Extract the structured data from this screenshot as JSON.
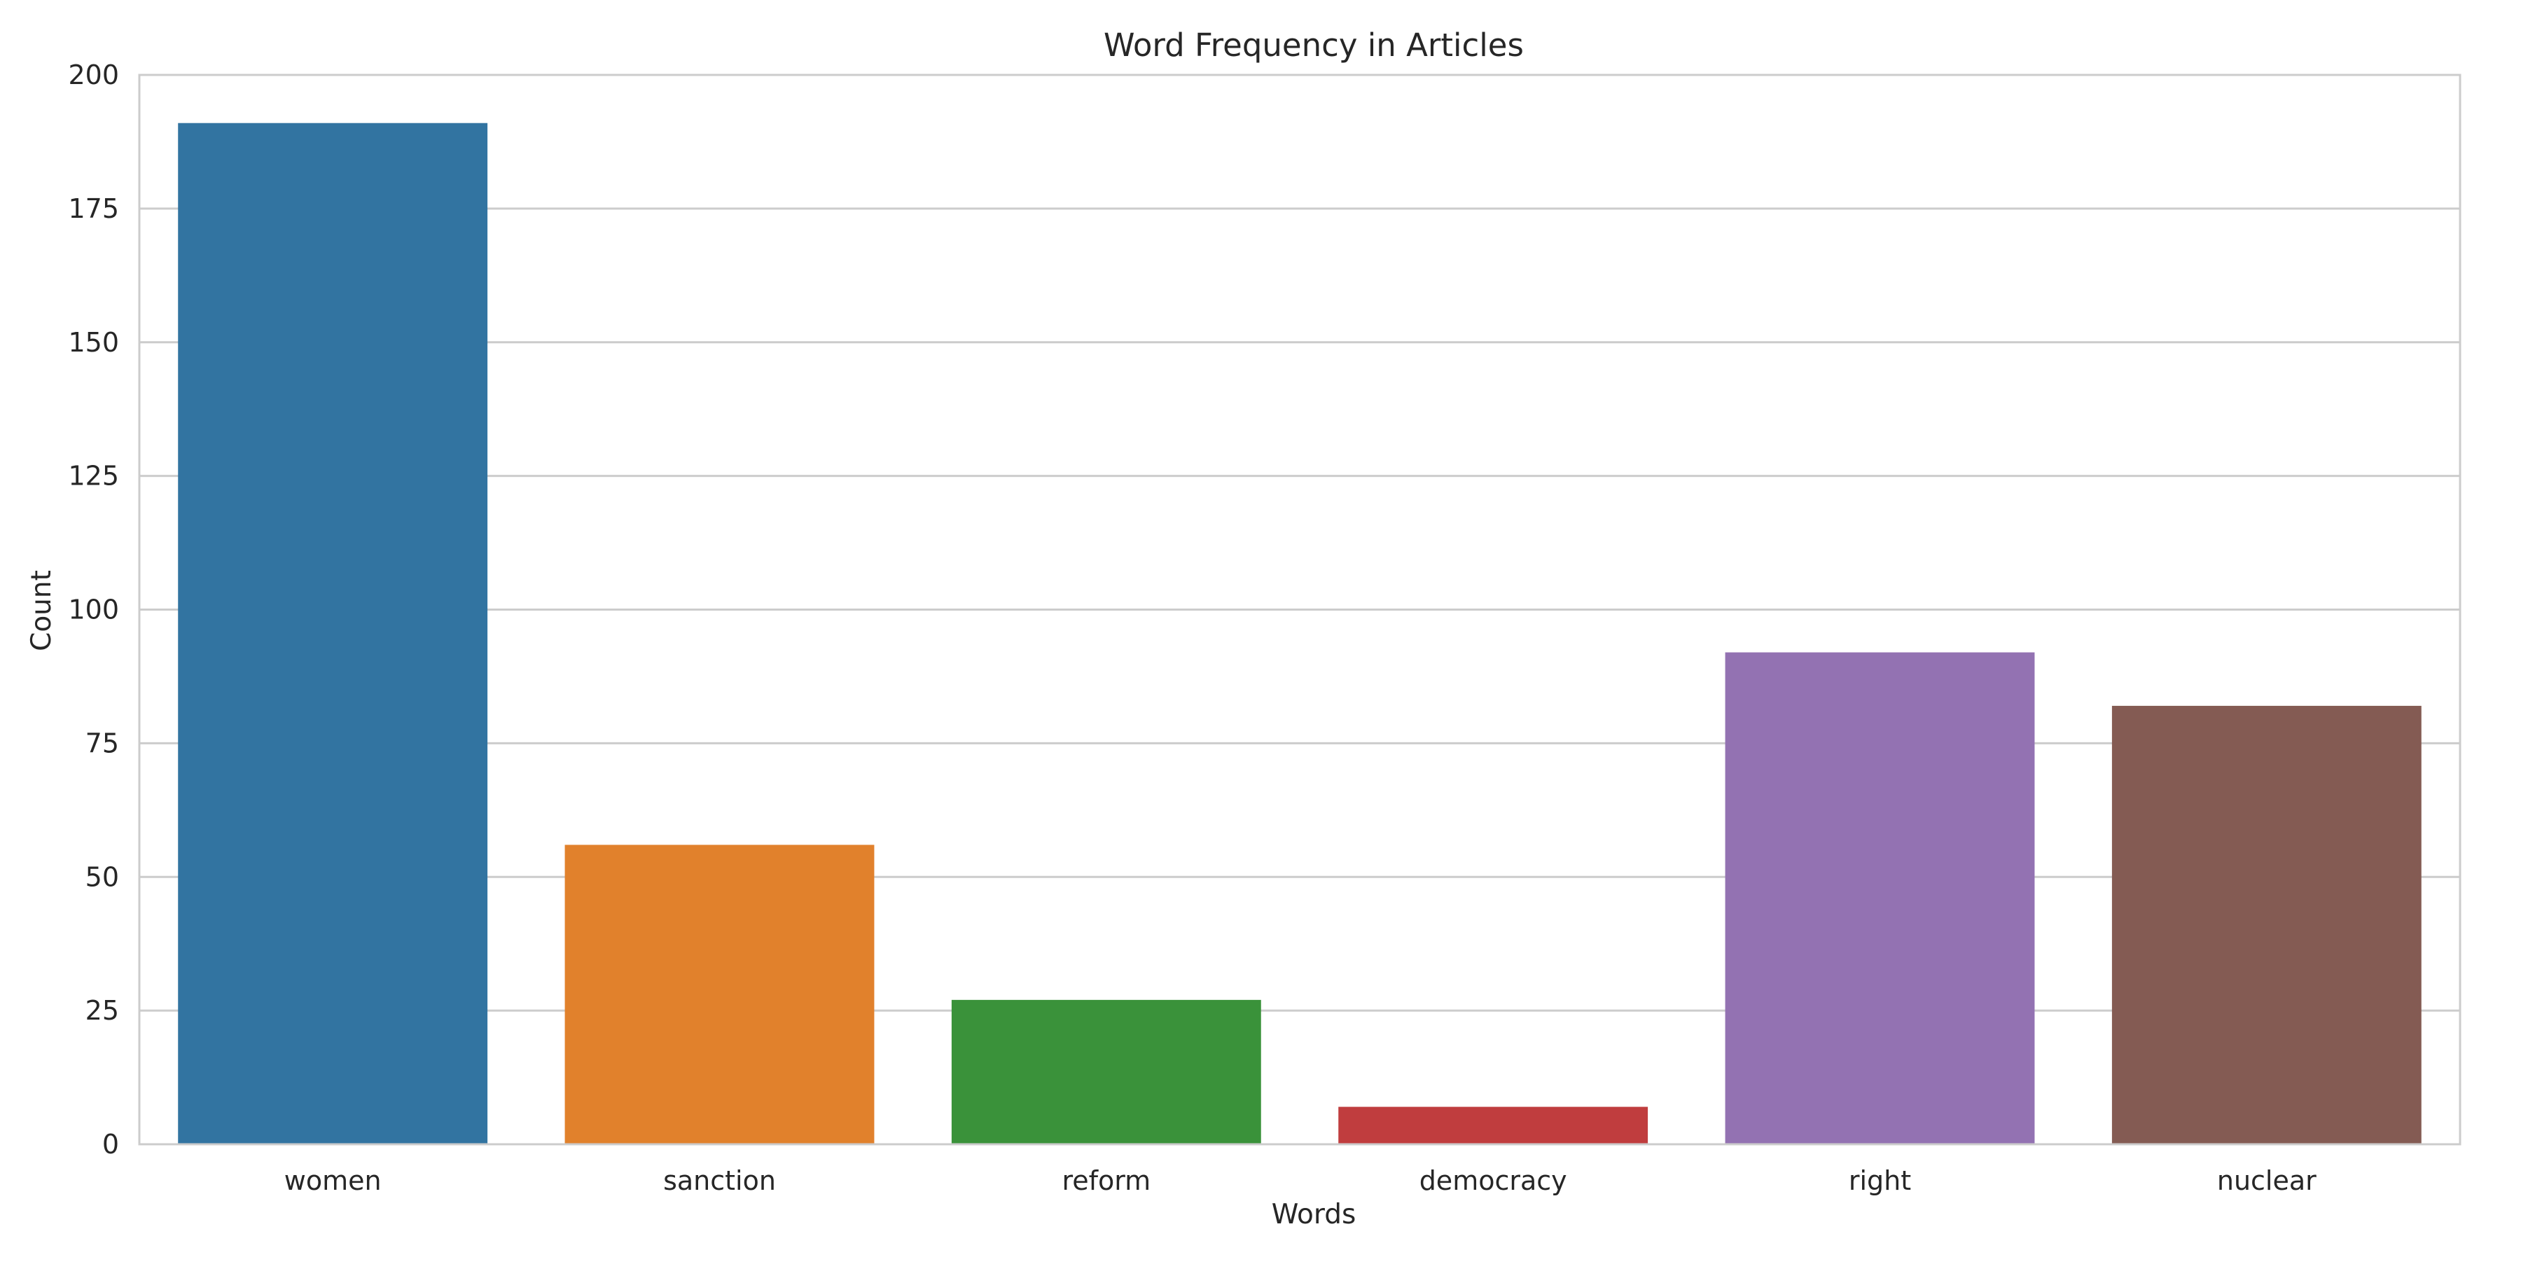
{
  "chart_data": {
    "type": "bar",
    "title": "Word Frequency in Articles",
    "xlabel": "Words",
    "ylabel": "Count",
    "categories": [
      "women",
      "sanction",
      "reform",
      "democracy",
      "right",
      "nuclear"
    ],
    "values": [
      191,
      56,
      27,
      7,
      92,
      82
    ],
    "colors": [
      "#3274a1",
      "#e1812c",
      "#3a923a",
      "#c03d3e",
      "#9372b2",
      "#845b53"
    ],
    "ylim": [
      0,
      200
    ],
    "yticks": [
      0,
      25,
      50,
      75,
      100,
      125,
      150,
      175,
      200
    ],
    "grid": true,
    "grid_axis": "y",
    "legend": "none"
  }
}
